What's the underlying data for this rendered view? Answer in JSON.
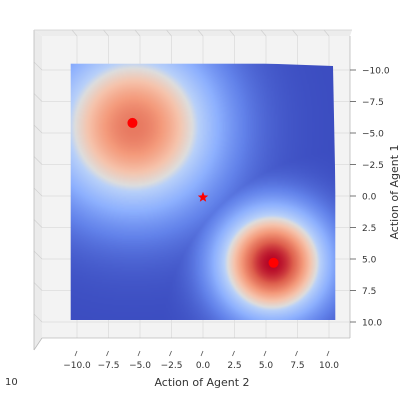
{
  "chart_data": {
    "type": "heatmap",
    "title": "",
    "xlabel": "Action of Agent 2",
    "ylabel": "Action of Agent 1",
    "xlim": [
      -11,
      11
    ],
    "ylim": [
      -11,
      11
    ],
    "x_ticks": [
      -10.0,
      -7.5,
      -5.0,
      -2.5,
      0.0,
      2.5,
      5.0,
      7.5,
      10.0
    ],
    "x_tick_labels": [
      "−10.0",
      "−7.5",
      "−5.0",
      "−2.5",
      "0.0",
      "2.5",
      "5.0",
      "7.5",
      "10.0"
    ],
    "y_ticks": [
      -10.0,
      -7.5,
      -5.0,
      -2.5,
      0.0,
      2.5,
      5.0,
      7.5,
      10.0
    ],
    "y_tick_labels": [
      "−10.0",
      "−7.5",
      "−5.0",
      "−2.5",
      "0.0",
      "2.5",
      "5.0",
      "7.5",
      "10.0"
    ],
    "y_axis_inverted": true,
    "z_tick_label": "10",
    "colormap": "coolwarm",
    "surface": {
      "x_range": [
        -10.5,
        10.5
      ],
      "y_range": [
        -10.5,
        10.5
      ],
      "peaks": [
        {
          "x": -5.5,
          "y": -5.5,
          "height": 0.8,
          "width": 4.8
        },
        {
          "x": 5.5,
          "y": 5.3,
          "height": 1.0,
          "width": 3.0
        }
      ]
    },
    "markers": [
      {
        "x": -5.6,
        "y": -5.8,
        "shape": "circle",
        "color": "#ff0000"
      },
      {
        "x": 5.6,
        "y": 5.3,
        "shape": "circle",
        "color": "#ff0000"
      },
      {
        "x": 0.0,
        "y": 0.1,
        "shape": "star",
        "color": "#ff0000"
      }
    ],
    "grid": true
  }
}
